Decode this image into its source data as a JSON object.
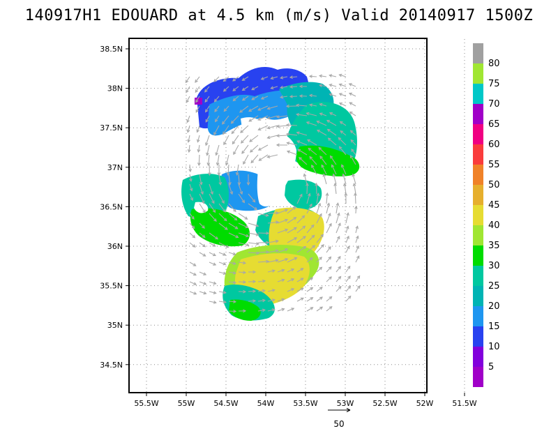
{
  "title": "140917H1 EDOUARD at 4.5 km (m/s) Valid 20140917 1500Z",
  "chart_data": {
    "type": "map",
    "lon_ticks": [
      "55.5W",
      "55W",
      "54.5W",
      "54W",
      "53.5W",
      "53W",
      "52.5W",
      "52W",
      "51.5W"
    ],
    "lat_ticks": [
      "38.5N",
      "38N",
      "37.5N",
      "37N",
      "36.5N",
      "36N",
      "35.5N",
      "35N",
      "34.5N"
    ],
    "colorbar": {
      "labels": [
        "80",
        "75",
        "70",
        "65",
        "60",
        "55",
        "50",
        "45",
        "40",
        "35",
        "30",
        "25",
        "20",
        "15",
        "10",
        "5"
      ],
      "colors": [
        "#a0a0a0",
        "#a0e632",
        "#00c8c8",
        "#a000c8",
        "#f00082",
        "#fa3c3c",
        "#f08228",
        "#e6af2d",
        "#e6dc32",
        "#a0e632",
        "#00dc00",
        "#00c8a0",
        "#00b4b4",
        "#1e96f0",
        "#2842f0",
        "#8200dc",
        "#a000c8"
      ]
    },
    "vector_scale_label": "50",
    "grid": true
  }
}
